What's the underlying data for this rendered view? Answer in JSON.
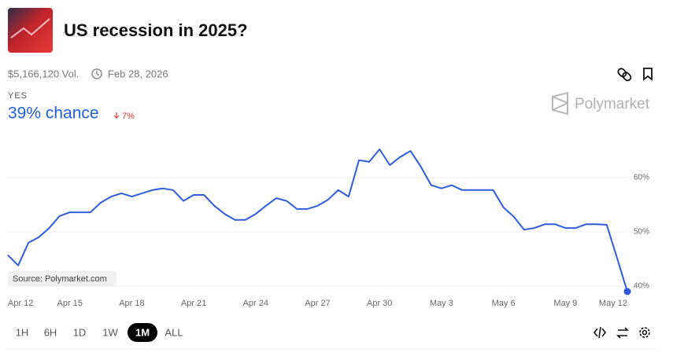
{
  "header": {
    "title": "US recession in 2025?",
    "volume": "$5,166,120 Vol.",
    "end_date": "Feb 28, 2026"
  },
  "outcome": {
    "label": "YES",
    "chance": "39% chance",
    "change": "7%"
  },
  "brand": "Polymarket",
  "source": "Source: Polymarket.com",
  "timeframes": [
    "1H",
    "6H",
    "1D",
    "1W",
    "1M",
    "ALL"
  ],
  "active_timeframe": "1M",
  "chart_data": {
    "type": "line",
    "series": [
      {
        "name": "Yes",
        "color": "#2e5cdb",
        "values": [
          45.7,
          43.8,
          48,
          49,
          50.7,
          52.9,
          53.6,
          53.6,
          53.6,
          55.4,
          56.5,
          57.1,
          56.5,
          57.1,
          57.7,
          58.0,
          57.7,
          55.7,
          56.8,
          56.8,
          54.8,
          53.3,
          52.2,
          52.2,
          53.3,
          54.8,
          56.2,
          55.7,
          54.2,
          54.2,
          54.8,
          55.9,
          57.7,
          56.5,
          63.2,
          62.9,
          65.2,
          62.3,
          63.8,
          64.9,
          62.0,
          58.6,
          58.0,
          58.6,
          57.7,
          57.7,
          57.7,
          57.7,
          54.5,
          52.8,
          50.4,
          50.7,
          51.4,
          51.4,
          50.7,
          50.7,
          51.4,
          51.4,
          51.3,
          45.2,
          39
        ]
      }
    ],
    "xlim": [
      0,
      60
    ],
    "xticks": [
      {
        "value": 0,
        "label": "Apr 12"
      },
      {
        "value": 6,
        "label": "Apr 15"
      },
      {
        "value": 12,
        "label": "Apr 18"
      },
      {
        "value": 18,
        "label": "Apr 21"
      },
      {
        "value": 24,
        "label": "Apr 24"
      },
      {
        "value": 30,
        "label": "Apr 27"
      },
      {
        "value": 36,
        "label": "Apr 30"
      },
      {
        "value": 42,
        "label": "May 3"
      },
      {
        "value": 48,
        "label": "May 6"
      },
      {
        "value": 54,
        "label": "May 9"
      },
      {
        "value": 60,
        "label": "May 12"
      }
    ],
    "ylim": [
      38.4,
      68.1
    ],
    "yticks": [
      {
        "value": 40,
        "label": "40%"
      },
      {
        "value": 50,
        "label": "50%"
      },
      {
        "value": 60,
        "label": "60%"
      }
    ],
    "grid": true
  }
}
